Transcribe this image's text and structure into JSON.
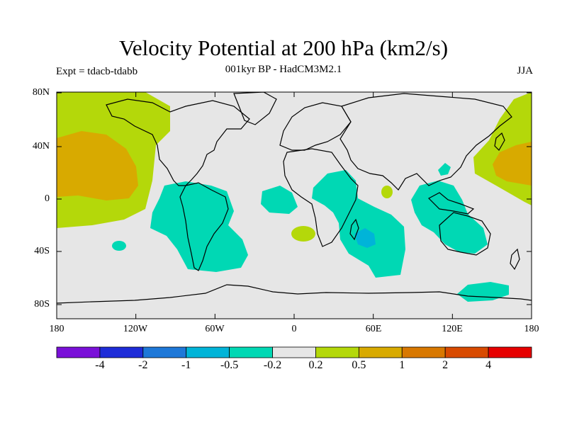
{
  "title": "Velocity Potential at 200 hPa (km2/s)",
  "subtitle": "001kyr BP - HadCM3M2.1",
  "experiment": "Expt = tdacb-tdabb",
  "season": "JJA",
  "lat_ticks": [
    "80N",
    "40N",
    "0",
    "40S",
    "80S"
  ],
  "lon_ticks": [
    "180",
    "120W",
    "60W",
    "0",
    "60E",
    "120E",
    "180"
  ],
  "colorbar": {
    "colors": [
      "#7a10d8",
      "#1e2cd8",
      "#1e78d8",
      "#00b4d8",
      "#00d8b4",
      "#e6e6e6",
      "#b4d80a",
      "#d8aa00",
      "#d87800",
      "#d84a00",
      "#e60000"
    ],
    "labels": [
      "-4",
      "-2",
      "-1",
      "-0.5",
      "-0.2",
      "0.2",
      "0.5",
      "1",
      "2",
      "4"
    ]
  },
  "colors": {
    "land_outline": "#000000",
    "neutral": "#e6e6e6",
    "neg_02": "#00d8b4",
    "neg_05": "#00b4d8",
    "pos_02": "#b4d80a",
    "pos_05": "#d8aa00"
  }
}
